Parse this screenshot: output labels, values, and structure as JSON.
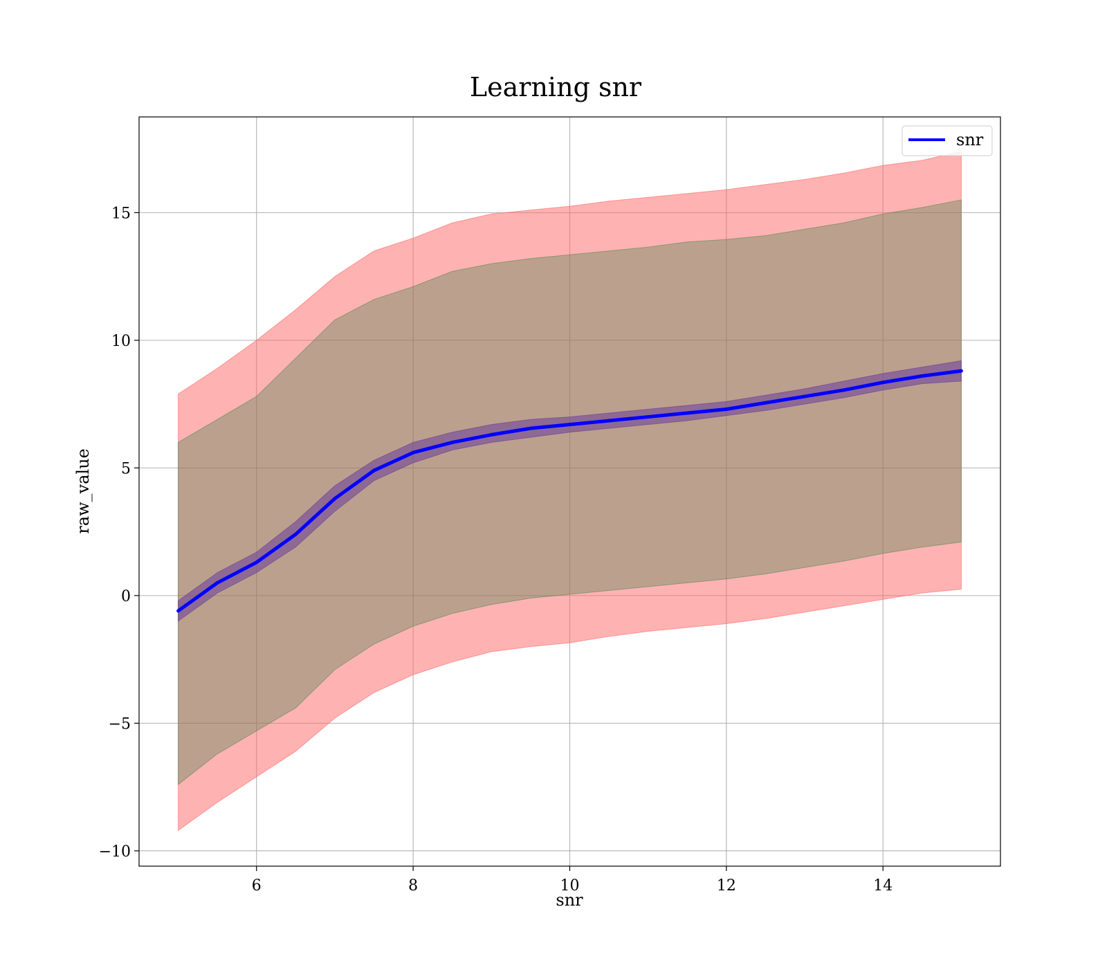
{
  "chart_data": {
    "type": "line",
    "title": "Learning snr",
    "xlabel": "snr",
    "ylabel": "raw_value",
    "xlim": [
      4.5,
      15.5
    ],
    "ylim": [
      -10.6,
      18.75
    ],
    "grid": true,
    "legend": {
      "placement": "top-right",
      "entries": [
        "snr"
      ]
    },
    "x_ticks": [
      6,
      8,
      10,
      12,
      14
    ],
    "x_tick_labels": [
      "6",
      "8",
      "10",
      "12",
      "14"
    ],
    "y_ticks": [
      -10,
      -5,
      0,
      5,
      10,
      15
    ],
    "y_tick_labels": [
      "−10",
      "−5",
      "0",
      "5",
      "10",
      "15"
    ],
    "x": [
      5.0,
      5.5,
      6.0,
      6.5,
      7.0,
      7.5,
      8.0,
      8.5,
      9.0,
      9.5,
      10.0,
      10.5,
      11.0,
      11.5,
      12.0,
      12.5,
      13.0,
      13.5,
      14.0,
      14.5,
      15.0
    ],
    "series": [
      {
        "name": "snr",
        "color": "#0000ff",
        "values": [
          -0.6,
          0.5,
          1.3,
          2.4,
          3.8,
          4.9,
          5.6,
          6.0,
          6.3,
          6.55,
          6.7,
          6.85,
          7.0,
          7.15,
          7.3,
          7.55,
          7.8,
          8.05,
          8.35,
          8.6,
          8.8
        ]
      }
    ],
    "bands": [
      {
        "color": "#ff6666",
        "opacity": 0.5,
        "lower": [
          -9.2,
          -8.1,
          -7.1,
          -6.1,
          -4.8,
          -3.8,
          -3.1,
          -2.6,
          -2.2,
          -2.0,
          -1.85,
          -1.6,
          -1.4,
          -1.25,
          -1.1,
          -0.9,
          -0.65,
          -0.4,
          -0.15,
          0.1,
          0.25
        ],
        "upper": [
          7.9,
          8.9,
          10.0,
          11.2,
          12.5,
          13.5,
          14.0,
          14.6,
          14.95,
          15.1,
          15.25,
          15.45,
          15.6,
          15.75,
          15.9,
          16.1,
          16.3,
          16.55,
          16.85,
          17.05,
          17.4
        ]
      },
      {
        "color": "#558855",
        "opacity": 0.4,
        "lower": [
          -7.4,
          -6.2,
          -5.3,
          -4.4,
          -2.9,
          -1.9,
          -1.2,
          -0.7,
          -0.35,
          -0.1,
          0.05,
          0.2,
          0.35,
          0.5,
          0.65,
          0.85,
          1.1,
          1.35,
          1.65,
          1.9,
          2.1
        ],
        "upper": [
          6.0,
          6.9,
          7.8,
          9.3,
          10.8,
          11.6,
          12.1,
          12.7,
          13.0,
          13.2,
          13.35,
          13.5,
          13.65,
          13.85,
          13.95,
          14.1,
          14.35,
          14.6,
          14.95,
          15.2,
          15.5
        ]
      },
      {
        "color": "#6a3d9a",
        "opacity": 0.55,
        "lower": [
          -1.0,
          0.1,
          0.9,
          1.9,
          3.3,
          4.5,
          5.2,
          5.7,
          6.0,
          6.2,
          6.4,
          6.55,
          6.7,
          6.85,
          7.05,
          7.25,
          7.5,
          7.75,
          8.05,
          8.3,
          8.4
        ],
        "upper": [
          -0.2,
          0.9,
          1.7,
          2.9,
          4.3,
          5.3,
          6.0,
          6.4,
          6.7,
          6.9,
          7.0,
          7.15,
          7.3,
          7.45,
          7.6,
          7.85,
          8.1,
          8.4,
          8.7,
          8.95,
          9.2
        ]
      }
    ]
  }
}
